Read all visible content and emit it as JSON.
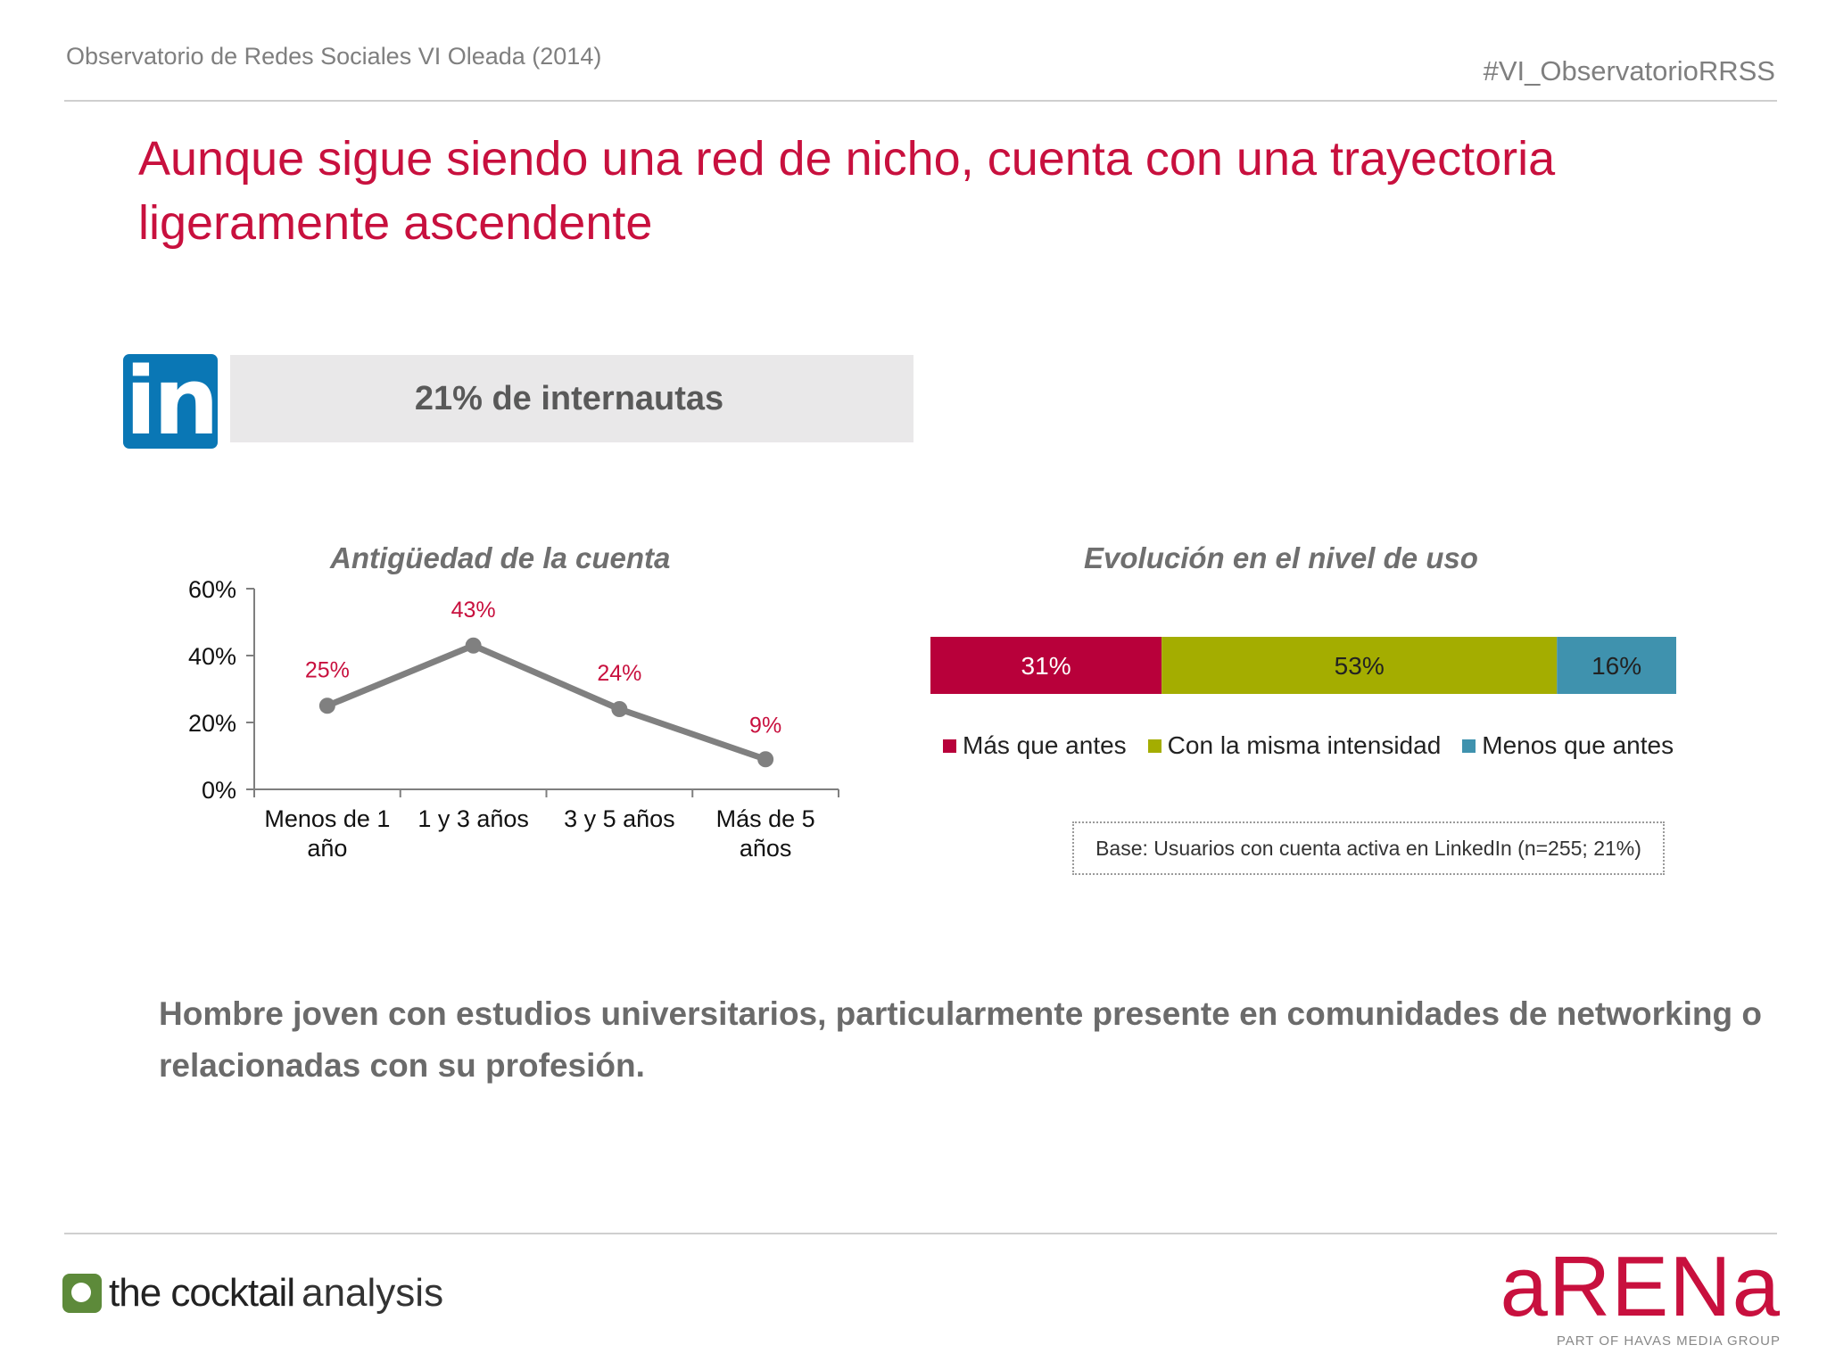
{
  "header": {
    "left": "Observatorio de Redes Sociales VI Oleada (2014)",
    "right": "#VI_ObservatorioRRSS"
  },
  "title": "Aunque sigue siendo una red de nicho, cuenta con una trayectoria ligeramente ascendente",
  "network": {
    "icon": "linkedin-logo-icon",
    "logo_text": "in",
    "stat": "21% de internautas"
  },
  "colors": {
    "accent": "#c8103e",
    "more": "#b8003a",
    "same": "#a4ad00",
    "less": "#3f92ae",
    "line": "#808080"
  },
  "chart_data": [
    {
      "type": "line",
      "title": "Antigüedad de la cuenta",
      "categories": [
        "Menos de 1 año",
        "1 y 3 años",
        "3 y 5 años",
        "Más de 5 años"
      ],
      "values": [
        25,
        43,
        24,
        9
      ],
      "data_labels": [
        "25%",
        "43%",
        "24%",
        "9%"
      ],
      "ylim": [
        0,
        60
      ],
      "yticks": [
        "0%",
        "20%",
        "40%",
        "60%"
      ],
      "grid": false
    },
    {
      "type": "bar",
      "stacked": true,
      "orientation": "horizontal",
      "title": "Evolución en el nivel de uso",
      "series": [
        {
          "name": "Más que antes",
          "values": [
            31
          ],
          "label": "31%"
        },
        {
          "name": "Con la misma intensidad",
          "values": [
            53
          ],
          "label": "53%"
        },
        {
          "name": "Menos que antes",
          "values": [
            16
          ],
          "label": "16%"
        }
      ],
      "legend_position": "bottom"
    }
  ],
  "base_note": "Base: Usuarios con cuenta activa en LinkedIn (n=255; 21%)",
  "summary": "Hombre joven con estudios universitarios, particularmente presente en comunidades de networking o relacionadas con su profesión.",
  "footer": {
    "left_logo": {
      "bold": "the cocktail",
      "light": "analysis"
    },
    "right_logo": {
      "word": "aRENa",
      "sub": "PART OF HAVAS MEDIA GROUP"
    }
  }
}
